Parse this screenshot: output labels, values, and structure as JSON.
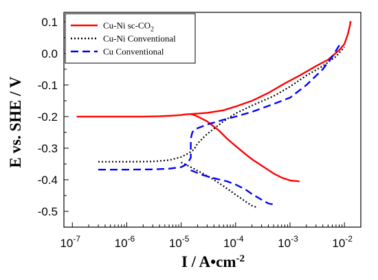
{
  "chart_data": {
    "type": "line",
    "xlabel": "I / A•cm",
    "xlabel_superscript": "-2",
    "ylabel": "E vs. SHE / V",
    "x_scale": "log",
    "xlim": [
      7e-08,
      0.02
    ],
    "ylim": [
      -0.55,
      0.13
    ],
    "x_ticks": [
      {
        "value": 1e-07,
        "base": "10",
        "exp": "-7"
      },
      {
        "value": 1e-06,
        "base": "10",
        "exp": "-6"
      },
      {
        "value": 1e-05,
        "base": "10",
        "exp": "-5"
      },
      {
        "value": 0.0001,
        "base": "10",
        "exp": "-4"
      },
      {
        "value": 0.001,
        "base": "10",
        "exp": "-3"
      },
      {
        "value": 0.01,
        "base": "10",
        "exp": "-2"
      }
    ],
    "y_ticks": [
      {
        "value": 0.1,
        "label": "0.1"
      },
      {
        "value": 0.0,
        "label": "0.0"
      },
      {
        "value": -0.1,
        "label": "-0.1"
      },
      {
        "value": -0.2,
        "label": "-0.2"
      },
      {
        "value": -0.3,
        "label": "-0.3"
      },
      {
        "value": -0.4,
        "label": "-0.4"
      },
      {
        "value": -0.5,
        "label": "-0.5"
      }
    ],
    "grid": false,
    "legend_position": "top-left",
    "series": [
      {
        "name": "Cu-Ni sc-CO",
        "name_subscript": "2",
        "color": "#ff0000",
        "style": "solid",
        "points": [
          [
            1.2e-07,
            -0.2
          ],
          [
            5e-07,
            -0.2
          ],
          [
            1e-06,
            -0.2
          ],
          [
            2e-06,
            -0.2
          ],
          [
            4e-06,
            -0.199
          ],
          [
            7e-06,
            -0.197
          ],
          [
            1e-05,
            -0.195
          ],
          [
            1.2e-05,
            -0.193
          ],
          [
            1.5e-05,
            -0.192
          ],
          [
            1.8e-05,
            -0.196
          ],
          [
            2.2e-05,
            -0.203
          ],
          [
            3e-05,
            -0.215
          ],
          [
            5e-05,
            -0.245
          ],
          [
            7e-05,
            -0.27
          ],
          [
            0.0001,
            -0.293
          ],
          [
            0.00015,
            -0.318
          ],
          [
            0.0002,
            -0.335
          ],
          [
            0.0003,
            -0.355
          ],
          [
            0.0005,
            -0.38
          ],
          [
            0.0007,
            -0.393
          ],
          [
            0.001,
            -0.402
          ],
          [
            0.0015,
            -0.405
          ]
        ],
        "anodic_points": [
          [
            1.5e-05,
            -0.192
          ],
          [
            3e-05,
            -0.188
          ],
          [
            6e-05,
            -0.18
          ],
          [
            0.0001,
            -0.168
          ],
          [
            0.0002,
            -0.15
          ],
          [
            0.0004,
            -0.125
          ],
          [
            0.0008,
            -0.095
          ],
          [
            0.0015,
            -0.07
          ],
          [
            0.003,
            -0.04
          ],
          [
            0.005,
            -0.02
          ],
          [
            0.008,
            0.01
          ],
          [
            0.01,
            0.03
          ],
          [
            0.0115,
            0.06
          ],
          [
            0.0125,
            0.085
          ],
          [
            0.013,
            0.1
          ],
          [
            0.0125,
            0.097
          ]
        ]
      },
      {
        "name": "Cu-Ni Conventional",
        "color": "#000000",
        "style": "dotted",
        "points": [
          [
            3e-07,
            -0.343
          ],
          [
            1e-06,
            -0.343
          ],
          [
            3e-06,
            -0.342
          ],
          [
            6e-06,
            -0.338
          ],
          [
            1e-05,
            -0.328
          ],
          [
            1.4e-05,
            -0.315
          ],
          [
            1.7e-05,
            -0.305
          ],
          [
            2e-05,
            -0.285
          ],
          [
            3e-05,
            -0.255
          ],
          [
            6e-05,
            -0.215
          ],
          [
            0.0001,
            -0.19
          ],
          [
            0.0002,
            -0.165
          ],
          [
            0.0005,
            -0.135
          ],
          [
            0.001,
            -0.105
          ],
          [
            0.002,
            -0.07
          ],
          [
            0.004,
            -0.04
          ],
          [
            0.007,
            -0.01
          ],
          [
            0.01,
            0.02
          ]
        ],
        "cathodic_points": [
          [
            1e-05,
            -0.345
          ],
          [
            1.5e-05,
            -0.36
          ],
          [
            2.5e-05,
            -0.38
          ],
          [
            4e-05,
            -0.4
          ],
          [
            6e-05,
            -0.42
          ],
          [
            0.0001,
            -0.447
          ],
          [
            0.00015,
            -0.468
          ],
          [
            0.0002,
            -0.482
          ],
          [
            0.00025,
            -0.488
          ]
        ]
      },
      {
        "name": "Cu Conventional",
        "color": "#0000ff",
        "style": "dashed",
        "points": [
          [
            3e-07,
            -0.368
          ],
          [
            1e-06,
            -0.368
          ],
          [
            3e-06,
            -0.367
          ],
          [
            6e-06,
            -0.365
          ],
          [
            1e-05,
            -0.36
          ],
          [
            1.3e-05,
            -0.35
          ],
          [
            1.5e-05,
            -0.33
          ],
          [
            1.5e-05,
            -0.3
          ],
          [
            1.5e-05,
            -0.27
          ],
          [
            1.6e-05,
            -0.25
          ],
          [
            1.8e-05,
            -0.24
          ],
          [
            3e-05,
            -0.225
          ],
          [
            6e-05,
            -0.21
          ],
          [
            0.0001,
            -0.2
          ],
          [
            0.0002,
            -0.185
          ],
          [
            0.0005,
            -0.16
          ],
          [
            0.001,
            -0.14
          ],
          [
            0.002,
            -0.1
          ],
          [
            0.004,
            -0.05
          ],
          [
            0.006,
            -0.01
          ],
          [
            0.008,
            0.025
          ],
          [
            0.009,
            0.035
          ]
        ],
        "cathodic_points": [
          [
            1.5e-05,
            -0.37
          ],
          [
            2.5e-05,
            -0.385
          ],
          [
            4e-05,
            -0.395
          ],
          [
            7e-05,
            -0.405
          ],
          [
            0.0001,
            -0.415
          ],
          [
            0.00015,
            -0.43
          ],
          [
            0.0002,
            -0.445
          ],
          [
            0.0003,
            -0.463
          ],
          [
            0.0004,
            -0.475
          ],
          [
            0.0005,
            -0.478
          ]
        ]
      }
    ]
  }
}
